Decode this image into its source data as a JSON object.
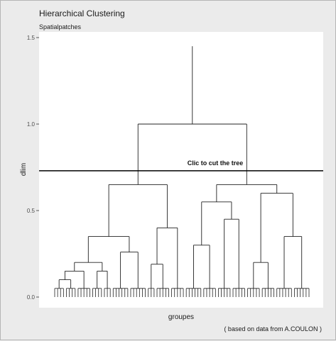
{
  "chart_data": {
    "type": "dendrogram",
    "title": "Hierarchical Clustering",
    "subtitle": "Spatialpatches",
    "xlabel": "groupes",
    "ylabel": "dlim",
    "caption": "( based on data from A.COULON )",
    "ylim": [
      0,
      1.5
    ],
    "y_ticks": [
      0.0,
      0.5,
      1.0,
      1.5
    ],
    "y_tick_labels": [
      "0.0",
      "0.5",
      "1.0",
      "1.5"
    ],
    "grid": false,
    "cut_line": {
      "y": 0.73,
      "label": "Clic to cut the tree"
    },
    "leaves_per_group": [
      4,
      4,
      5,
      4,
      3,
      6,
      6,
      3,
      5,
      5,
      6,
      5,
      5,
      5,
      5,
      5,
      6,
      6
    ],
    "leaf_height": 0.05,
    "merges": [
      {
        "id": "n01",
        "left": "g1",
        "right": "g2",
        "height": 0.1
      },
      {
        "id": "n02",
        "left": "n01",
        "right": "g3",
        "height": 0.15
      },
      {
        "id": "n03",
        "left": "g4",
        "right": "g5",
        "height": 0.15
      },
      {
        "id": "n04",
        "left": "n02",
        "right": "n03",
        "height": 0.2
      },
      {
        "id": "n05",
        "left": "g6",
        "right": "g7",
        "height": 0.26
      },
      {
        "id": "n06",
        "left": "n04",
        "right": "n05",
        "height": 0.35
      },
      {
        "id": "n07",
        "left": "g8",
        "right": "g9",
        "height": 0.19
      },
      {
        "id": "n08",
        "left": "n07",
        "right": "g10",
        "height": 0.4
      },
      {
        "id": "n09",
        "left": "n06",
        "right": "n08",
        "height": 0.65
      },
      {
        "id": "n10",
        "left": "g11",
        "right": "g12",
        "height": 0.3
      },
      {
        "id": "n11",
        "left": "g13",
        "right": "g14",
        "height": 0.45
      },
      {
        "id": "n12",
        "left": "n10",
        "right": "n11",
        "height": 0.55
      },
      {
        "id": "n13",
        "left": "g15",
        "right": "g16",
        "height": 0.2
      },
      {
        "id": "n14",
        "left": "g17",
        "right": "g18",
        "height": 0.35
      },
      {
        "id": "n15",
        "left": "n13",
        "right": "n14",
        "height": 0.6
      },
      {
        "id": "n16",
        "left": "n12",
        "right": "n15",
        "height": 0.65
      },
      {
        "id": "n17",
        "left": "n09",
        "right": "n16",
        "height": 1.0
      },
      {
        "id": "root",
        "left": "n17",
        "right": null,
        "height": 1.45
      }
    ]
  }
}
